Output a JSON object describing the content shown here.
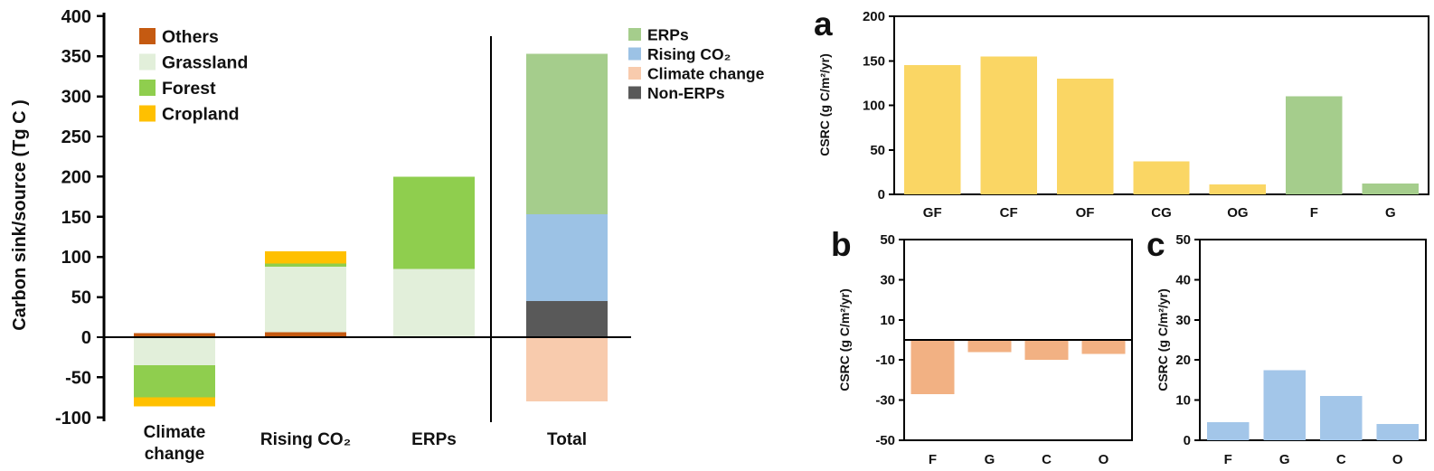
{
  "chart_data": [
    {
      "id": "main",
      "type": "bar",
      "stacked": true,
      "ylabel": "Carbon sink/source (Tg C )",
      "ylim": [
        -100,
        400
      ],
      "yticks": [
        400,
        350,
        300,
        250,
        200,
        150,
        100,
        50,
        0,
        -50,
        -100
      ],
      "categories": [
        "Climate\nchange",
        "Rising CO₂",
        "ERPs",
        "Total"
      ],
      "series": [
        {
          "name": "Others",
          "color": "#C55A11",
          "values": [
            5,
            6,
            0,
            0
          ]
        },
        {
          "name": "Grassland",
          "color": "#E2EFDA",
          "values": [
            -35,
            82,
            85,
            0
          ]
        },
        {
          "name": "Forest",
          "color": "#8FCE4E",
          "values": [
            -40,
            4,
            115,
            0
          ]
        },
        {
          "name": "Cropland",
          "color": "#FFC000",
          "values": [
            -11,
            15,
            0,
            0
          ]
        },
        {
          "name": "Non-ERPs",
          "color": "#595959",
          "values": [
            0,
            0,
            0,
            45
          ]
        },
        {
          "name": "Rising CO₂",
          "color": "#9CC2E5",
          "values": [
            0,
            0,
            0,
            108
          ]
        },
        {
          "name": "ERPs",
          "color": "#A5CD8C",
          "values": [
            0,
            0,
            0,
            200
          ]
        },
        {
          "name": "Climate change",
          "color": "#F8CBAD",
          "values": [
            0,
            0,
            0,
            -80
          ]
        }
      ],
      "legend_left": [
        {
          "name": "Others",
          "color": "#C55A11"
        },
        {
          "name": "Grassland",
          "color": "#E2EFDA"
        },
        {
          "name": "Forest",
          "color": "#8FCE4E"
        },
        {
          "name": "Cropland",
          "color": "#FFC000"
        }
      ],
      "legend_right": [
        {
          "name": "ERPs",
          "color": "#A5CD8C"
        },
        {
          "name": "Rising CO₂",
          "color": "#9CC2E5"
        },
        {
          "name": "Climate change",
          "color": "#F8CBAD"
        },
        {
          "name": "Non-ERPs",
          "color": "#595959"
        }
      ],
      "zero_line": true,
      "divider_after_category": "ERPs"
    },
    {
      "id": "a",
      "panel_label": "a",
      "type": "bar",
      "ylabel": "CSRC (g C/m²/yr)",
      "ylim": [
        0,
        200
      ],
      "yticks": [
        200,
        150,
        100,
        50,
        0
      ],
      "categories": [
        "GF",
        "CF",
        "OF",
        "CG",
        "OG",
        "F",
        "G"
      ],
      "values": [
        145,
        155,
        130,
        37,
        11,
        110,
        12
      ],
      "bar_colors": [
        "#FAD664",
        "#FAD664",
        "#FAD664",
        "#FAD664",
        "#FAD664",
        "#A5CD8C",
        "#A5CD8C"
      ],
      "frame": true,
      "zero_line": false
    },
    {
      "id": "b",
      "panel_label": "b",
      "type": "bar",
      "ylabel": "CSRC (g C/m²/yr)",
      "ylim": [
        -50,
        50
      ],
      "yticks": [
        50,
        30,
        10,
        -10,
        -30,
        -50
      ],
      "categories": [
        "F",
        "G",
        "C",
        "O"
      ],
      "values": [
        -27,
        -6,
        -10,
        -7
      ],
      "bar_colors": [
        "#F2B183",
        "#F2B183",
        "#F2B183",
        "#F2B183"
      ],
      "frame": true,
      "zero_line": true
    },
    {
      "id": "c",
      "panel_label": "c",
      "type": "bar",
      "ylabel": "CSRC (g C/m²/yr)",
      "ylim": [
        0,
        50
      ],
      "yticks": [
        50,
        40,
        30,
        20,
        10,
        0
      ],
      "categories": [
        "F",
        "G",
        "C",
        "O"
      ],
      "values": [
        4.5,
        17.5,
        11,
        4
      ],
      "bar_colors": [
        "#A3C6E9",
        "#A3C6E9",
        "#A3C6E9",
        "#A3C6E9"
      ],
      "frame": true,
      "zero_line": false
    }
  ]
}
